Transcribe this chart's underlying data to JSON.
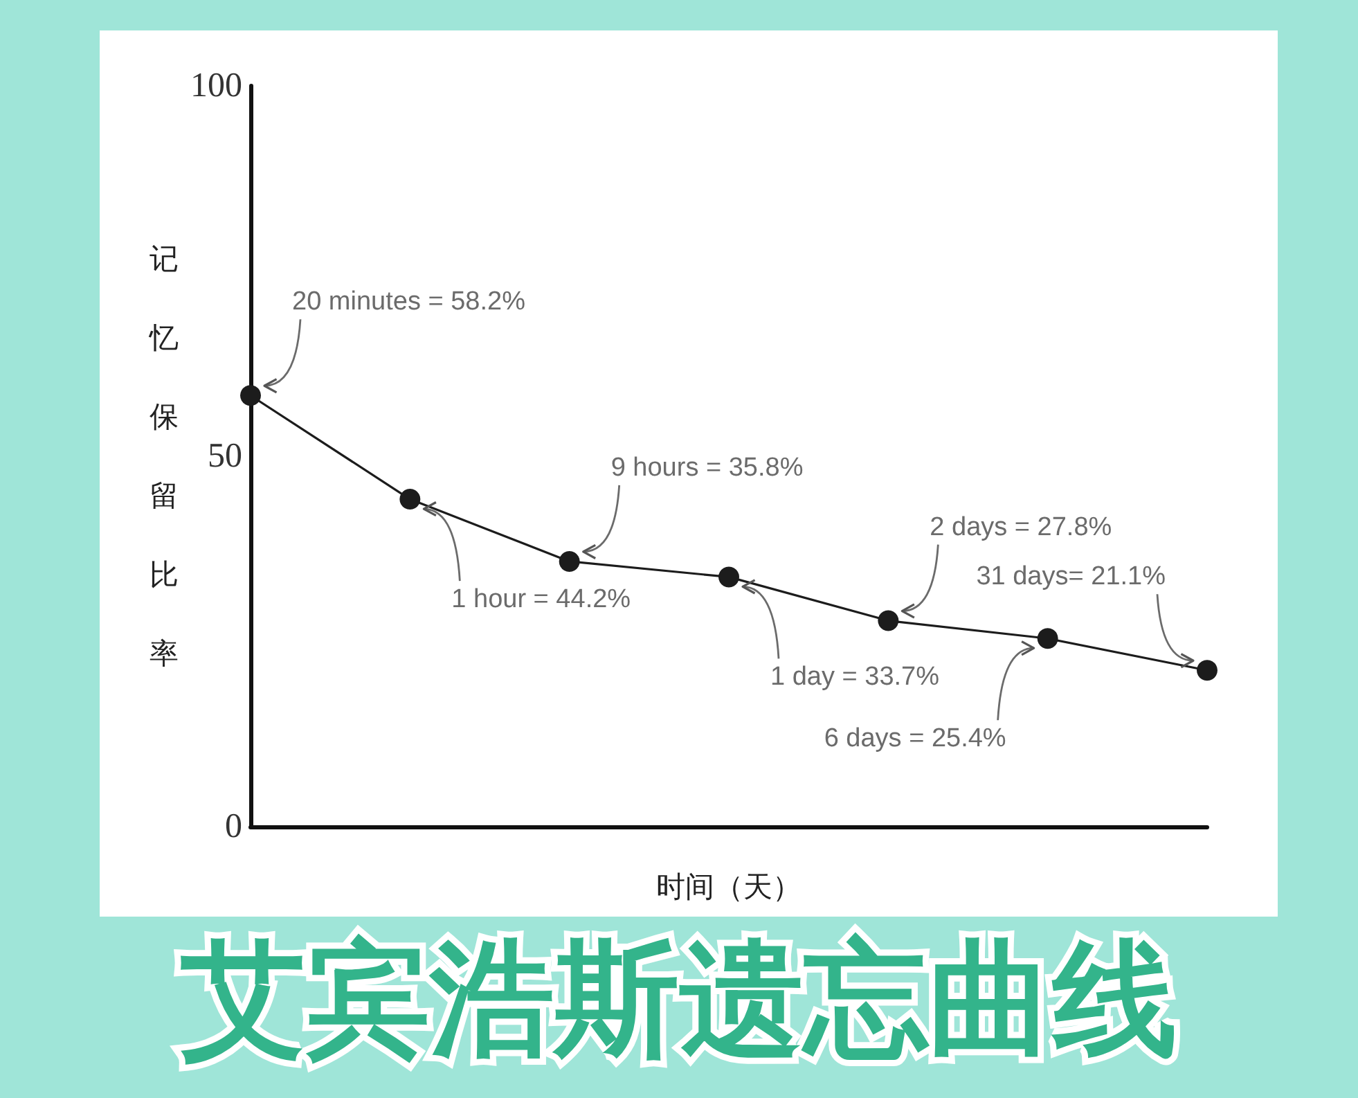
{
  "chart_data": {
    "type": "line",
    "title": "艾宾浩斯遗忘曲线",
    "xlabel": "时间（天）",
    "ylabel": "记忆保留比率",
    "categories": [
      null,
      null,
      null,
      null,
      null,
      null,
      null
    ],
    "values": [
      58.2,
      44.2,
      35.8,
      33.7,
      27.8,
      25.4,
      21.1
    ],
    "color": "#1c1c1c",
    "marker": "circle",
    "line_style": "solid",
    "ylim": [
      0,
      100
    ],
    "yticks": [
      0,
      50,
      100
    ],
    "annotations": [
      "20 minutes = 58.2%",
      "1 hour = 44.2%",
      "9 hours = 35.8%",
      "1 day = 33.7%",
      "2 days = 27.8%",
      "6 days = 25.4%",
      "31 days= 21.1%"
    ]
  }
}
